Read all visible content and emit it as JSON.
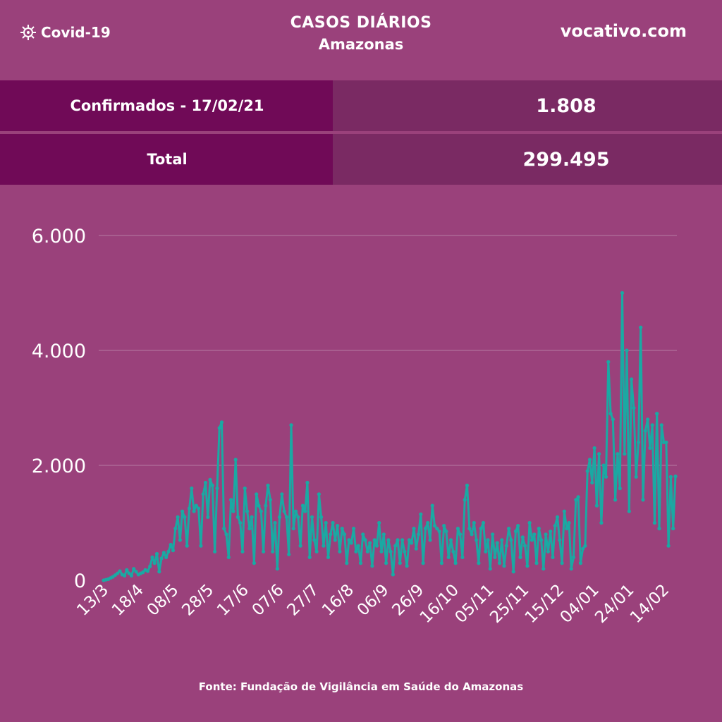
{
  "header": {
    "brand_label": "Covid-19",
    "brand_icon": "virus-icon",
    "title": "CASOS DIÁRIOS",
    "subtitle": "Amazonas",
    "site": "vocativo.com"
  },
  "stats": [
    {
      "label": "Confirmados - 17/02/21",
      "value": "1.808"
    },
    {
      "label": "Total",
      "value": "299.495"
    }
  ],
  "colors": {
    "background": "#9a417b",
    "label_bg": "#700a57",
    "value_bg": "#7a2a63",
    "line": "#1aa9a3",
    "grid": "#b77aa3"
  },
  "source": "Fonte: Fundação de Vigilância em Saúde do Amazonas",
  "chart_data": {
    "type": "line",
    "title": "CASOS DIÁRIOS",
    "xlabel": "",
    "ylabel": "",
    "ylim": [
      0,
      6000
    ],
    "yticks": [
      0,
      2000,
      4000,
      6000
    ],
    "ytick_labels": [
      "0",
      "2.000",
      "4.000",
      "6.000"
    ],
    "grid": true,
    "xtick_labels": [
      "13/3",
      "18/4",
      "08/5",
      "28/5",
      "17/6",
      "07/6",
      "27/7",
      "16/8",
      "06/9",
      "26/9",
      "16/10",
      "05/11",
      "25/11",
      "15/12",
      "04/01",
      "24/01",
      "14/02"
    ],
    "series": [
      {
        "values": [
          0,
          10,
          20,
          40,
          60,
          90,
          120,
          160,
          100,
          80,
          180,
          120,
          80,
          200,
          150,
          100,
          120,
          140,
          180,
          160,
          240,
          400,
          300,
          460,
          150,
          380,
          480,
          400,
          500,
          620,
          520,
          900,
          1100,
          700,
          1200,
          1100,
          600,
          1250,
          1600,
          1200,
          1300,
          1250,
          600,
          1500,
          1700,
          1100,
          1750,
          1650,
          500,
          1600,
          2650,
          2750,
          900,
          800,
          400,
          1400,
          1200,
          2100,
          1100,
          1000,
          500,
          1600,
          1200,
          900,
          1100,
          300,
          1500,
          1300,
          1200,
          500,
          1300,
          1650,
          1400,
          500,
          1000,
          200,
          1100,
          1500,
          1200,
          1100,
          450,
          2700,
          900,
          1200,
          1100,
          600,
          1300,
          1200,
          1700,
          400,
          1100,
          700,
          500,
          1500,
          1100,
          600,
          1000,
          400,
          800,
          1000,
          700,
          950,
          500,
          900,
          800,
          300,
          700,
          650,
          900,
          500,
          600,
          300,
          800,
          700,
          500,
          650,
          250,
          700,
          600,
          1000,
          500,
          800,
          300,
          700,
          500,
          100,
          600,
          700,
          300,
          700,
          500,
          250,
          700,
          650,
          900,
          550,
          800,
          1150,
          300,
          900,
          1000,
          700,
          1300,
          950,
          900,
          850,
          300,
          950,
          850,
          400,
          700,
          500,
          300,
          900,
          800,
          400,
          1400,
          1650,
          900,
          800,
          1000,
          700,
          300,
          900,
          1000,
          500,
          700,
          200,
          800,
          400,
          650,
          300,
          700,
          250,
          600,
          900,
          700,
          150,
          850,
          950,
          400,
          750,
          600,
          250,
          1000,
          700,
          800,
          300,
          900,
          700,
          200,
          800,
          500,
          850,
          400,
          950,
          1100,
          700,
          300,
          1200,
          900,
          1000,
          200,
          400,
          1400,
          1450,
          300,
          550,
          600,
          1900,
          2100,
          1700,
          2300,
          1300,
          2200,
          1000,
          2000,
          1800,
          3800,
          2900,
          2800,
          1400,
          2200,
          1600,
          5000,
          2200,
          4000,
          1200,
          3500,
          3000,
          1800,
          2400,
          4400,
          1400,
          2600,
          2800,
          2300,
          2700,
          1000,
          2900,
          900,
          2700,
          2400,
          2400,
          600,
          1800,
          900,
          1808
        ]
      }
    ]
  }
}
